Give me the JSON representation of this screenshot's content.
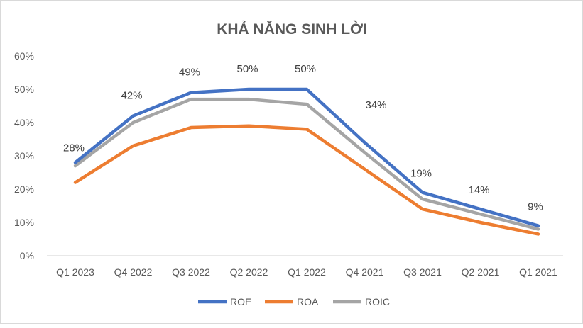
{
  "chart_data": {
    "type": "line",
    "title": "KHẢ NĂNG SINH LỜI",
    "xlabel": "",
    "ylabel": "",
    "categories": [
      "Q1 2023",
      "Q4 2022",
      "Q3 2022",
      "Q2 2022",
      "Q1 2022",
      "Q4 2021",
      "Q3 2021",
      "Q2 2021",
      "Q1 2021"
    ],
    "yticks": [
      "0%",
      "10%",
      "20%",
      "30%",
      "40%",
      "50%",
      "60%"
    ],
    "ylim": [
      0,
      60
    ],
    "grid": false,
    "legend": "bottom",
    "series": [
      {
        "name": "ROE",
        "color": "#4472c4",
        "values": [
          28,
          42,
          49,
          50,
          50,
          34,
          19,
          14,
          9
        ],
        "labels": [
          "28%",
          "42%",
          "49%",
          "50%",
          "50%",
          "34%",
          "19%",
          "14%",
          "9%"
        ]
      },
      {
        "name": "ROA",
        "color": "#ed7d31",
        "values": [
          22,
          33,
          38.5,
          39,
          38,
          26,
          14,
          10,
          6.5
        ]
      },
      {
        "name": "ROIC",
        "color": "#a5a5a5",
        "values": [
          27,
          40,
          47,
          47,
          45.5,
          31,
          17,
          12.5,
          8
        ]
      }
    ]
  }
}
